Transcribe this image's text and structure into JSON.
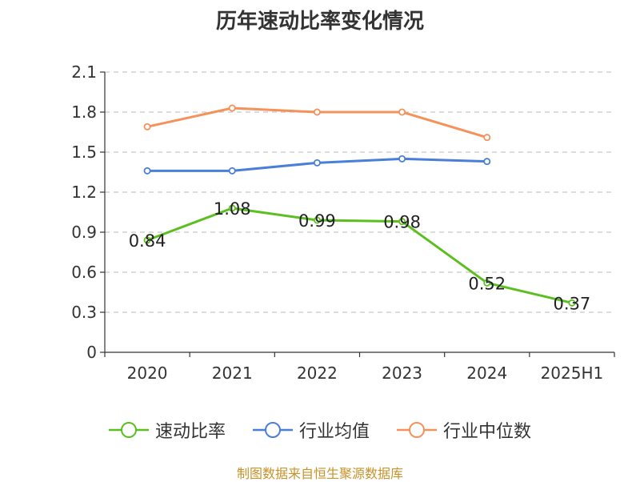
{
  "chart_data": {
    "type": "line",
    "title": "历年速动比率变化情况",
    "categories": [
      "2020",
      "2021",
      "2022",
      "2023",
      "2024",
      "2025H1"
    ],
    "yticks": [
      "0",
      "0.3",
      "0.6",
      "0.9",
      "1.2",
      "1.5",
      "1.8",
      "2.1"
    ],
    "ylim": [
      0,
      2.1
    ],
    "grid": true,
    "legend_position": "bottom",
    "series": [
      {
        "name": "速动比率",
        "color": "#5cbf20",
        "values": [
          0.84,
          1.08,
          0.99,
          0.98,
          0.52,
          0.37
        ],
        "labels": [
          "0.84",
          "1.08",
          "0.99",
          "0.98",
          "0.52",
          "0.37"
        ],
        "show_labels": true
      },
      {
        "name": "行业均值",
        "color": "#4a7fd9",
        "values": [
          1.36,
          1.36,
          1.42,
          1.45,
          1.43,
          null
        ],
        "show_labels": false
      },
      {
        "name": "行业中位数",
        "color": "#f5915a",
        "values": [
          1.69,
          1.83,
          1.8,
          1.8,
          1.61,
          null
        ],
        "show_labels": false
      }
    ]
  },
  "source": "制图数据来自恒生聚源数据库"
}
